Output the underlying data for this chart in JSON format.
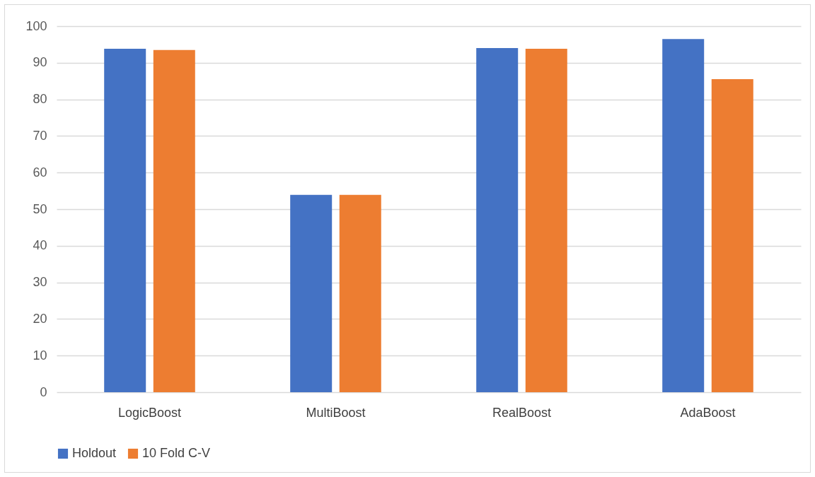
{
  "chart_data": {
    "type": "bar",
    "categories": [
      "LogicBoost",
      "MultiBoost",
      "RealBoost",
      "AdaBoost"
    ],
    "series": [
      {
        "name": "Holdout",
        "color": "#4472c4",
        "values": [
          93.8,
          53.9,
          94.0,
          96.5
        ]
      },
      {
        "name": "10 Fold C-V",
        "color": "#ed7d31",
        "values": [
          93.5,
          53.9,
          93.8,
          85.5
        ]
      }
    ],
    "ylim": [
      0,
      100
    ],
    "yticks": [
      0,
      10,
      20,
      30,
      40,
      50,
      60,
      70,
      80,
      90,
      100
    ],
    "grid": "y",
    "legend": "bottom"
  }
}
